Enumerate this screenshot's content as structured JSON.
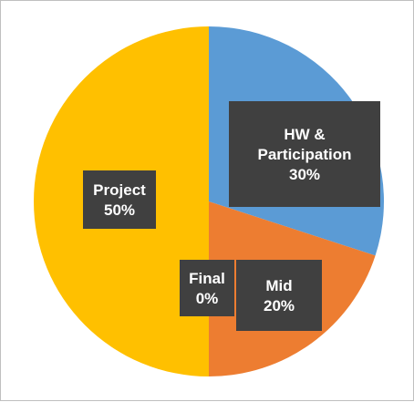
{
  "chart_data": {
    "type": "pie",
    "start_angle_deg": 0,
    "direction": "clockwise",
    "slices": [
      {
        "category": [
          "HW &",
          "Participation"
        ],
        "value": 30,
        "percent_label": "30%",
        "color": "#5b9bd5"
      },
      {
        "category": [
          "Mid"
        ],
        "value": 20,
        "percent_label": "20%",
        "color": "#ed7d31"
      },
      {
        "category": [
          "Final"
        ],
        "value": 0,
        "percent_label": "0%",
        "color": "#a5a5a5"
      },
      {
        "category": [
          "Project"
        ],
        "value": 50,
        "percent_label": "50%",
        "color": "#ffc000"
      }
    ],
    "data_label_style": "dark callout boxes with white bold text",
    "legend": "none",
    "title": ""
  }
}
